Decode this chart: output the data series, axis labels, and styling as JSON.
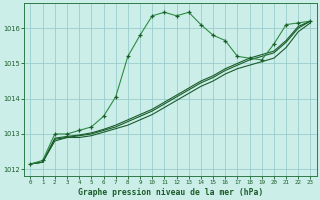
{
  "title": "Graphe pression niveau de la mer (hPa)",
  "background_color": "#cceee8",
  "grid_color": "#99cccc",
  "line_color_dark": "#1a5c2a",
  "line_color_light": "#2d8b45",
  "xlim": [
    -0.5,
    23.5
  ],
  "ylim": [
    1011.8,
    1016.7
  ],
  "yticks": [
    1012,
    1013,
    1014,
    1015,
    1016
  ],
  "xticks": [
    0,
    1,
    2,
    3,
    4,
    5,
    6,
    7,
    8,
    9,
    10,
    11,
    12,
    13,
    14,
    15,
    16,
    17,
    18,
    19,
    20,
    21,
    22,
    23
  ],
  "series1": {
    "x": [
      0,
      1,
      2,
      3,
      4,
      5,
      6,
      7,
      8,
      9,
      10,
      11,
      12,
      13,
      14,
      15,
      16,
      17,
      18,
      19,
      20,
      21,
      22,
      23
    ],
    "y": [
      1012.15,
      1012.25,
      1013.0,
      1013.0,
      1013.1,
      1013.2,
      1013.5,
      1014.05,
      1015.2,
      1015.8,
      1016.35,
      1016.45,
      1016.35,
      1016.45,
      1016.1,
      1015.8,
      1015.65,
      1015.2,
      1015.15,
      1015.1,
      1015.55,
      1016.1,
      1016.15,
      1016.2
    ]
  },
  "series2": {
    "x": [
      0,
      1,
      2,
      3,
      4,
      5,
      6,
      7,
      8,
      9,
      10,
      11,
      12,
      13,
      14,
      15,
      16,
      17,
      18,
      19,
      20,
      21,
      22,
      23
    ],
    "y": [
      1012.15,
      1012.2,
      1012.8,
      1012.9,
      1012.9,
      1012.95,
      1013.05,
      1013.15,
      1013.25,
      1013.4,
      1013.55,
      1013.75,
      1013.95,
      1014.15,
      1014.35,
      1014.5,
      1014.7,
      1014.85,
      1014.95,
      1015.05,
      1015.15,
      1015.45,
      1015.9,
      1016.15
    ]
  },
  "series3": {
    "x": [
      0,
      1,
      2,
      3,
      4,
      5,
      6,
      7,
      8,
      9,
      10,
      11,
      12,
      13,
      14,
      15,
      16,
      17,
      18,
      19,
      20,
      21,
      22,
      23
    ],
    "y": [
      1012.15,
      1012.2,
      1012.85,
      1012.9,
      1012.95,
      1013.0,
      1013.1,
      1013.2,
      1013.35,
      1013.5,
      1013.65,
      1013.85,
      1014.05,
      1014.25,
      1014.45,
      1014.6,
      1014.8,
      1014.95,
      1015.1,
      1015.2,
      1015.3,
      1015.6,
      1016.0,
      1016.2
    ]
  },
  "series4": {
    "x": [
      0,
      1,
      2,
      3,
      4,
      5,
      6,
      7,
      8,
      9,
      10,
      11,
      12,
      13,
      14,
      15,
      16,
      17,
      18,
      19,
      20,
      21,
      22,
      23
    ],
    "y": [
      1012.15,
      1012.2,
      1012.88,
      1012.93,
      1012.97,
      1013.03,
      1013.13,
      1013.25,
      1013.4,
      1013.55,
      1013.7,
      1013.9,
      1014.1,
      1014.3,
      1014.5,
      1014.65,
      1014.85,
      1015.0,
      1015.15,
      1015.25,
      1015.35,
      1015.65,
      1016.05,
      1016.2
    ]
  }
}
